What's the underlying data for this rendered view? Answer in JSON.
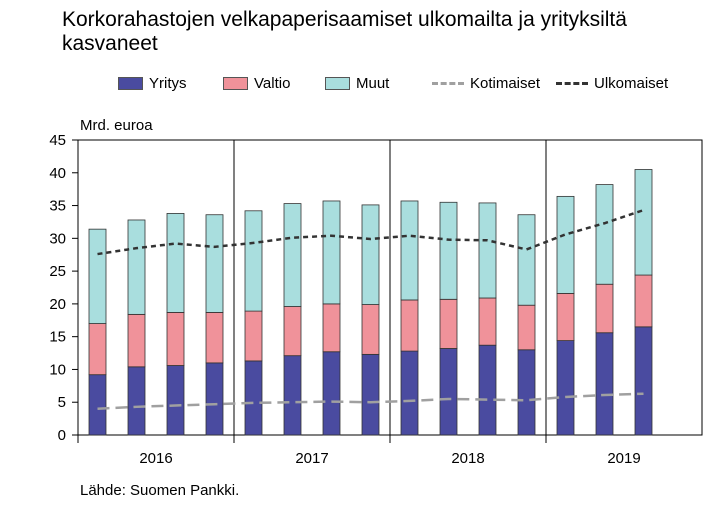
{
  "title": "Korkorahastojen velkapaperisaamiset ulkomailta ja yrityksiltä kasvaneet",
  "source": "Lähde: Suomen Pankki.",
  "colors": {
    "yritys": "#4a4ba0",
    "valtio": "#f0929a",
    "muut": "#a9dede",
    "kotimaiset": "#a0a0a0",
    "ulkomaiset": "#333333"
  },
  "legend": [
    {
      "key": "yritys",
      "label": "Yritys",
      "kind": "swatch"
    },
    {
      "key": "valtio",
      "label": "Valtio",
      "kind": "swatch"
    },
    {
      "key": "muut",
      "label": "Muut",
      "kind": "swatch"
    },
    {
      "key": "kotimaiset",
      "label": "Kotimaiset",
      "kind": "longdash"
    },
    {
      "key": "ulkomaiset",
      "label": "Ulkomaiset",
      "kind": "shortdash"
    }
  ],
  "chart_data": {
    "type": "bar",
    "stacked": true,
    "ylabel": "Mrd. euroa",
    "ylim": [
      0,
      45
    ],
    "yticks": [
      0,
      5,
      10,
      15,
      20,
      25,
      30,
      35,
      40,
      45
    ],
    "years": [
      "2016",
      "2017",
      "2018",
      "2019"
    ],
    "quarters_per_year": 4,
    "categories": [
      "2016Q1",
      "2016Q2",
      "2016Q3",
      "2016Q4",
      "2017Q1",
      "2017Q2",
      "2017Q3",
      "2017Q4",
      "2018Q1",
      "2018Q2",
      "2018Q3",
      "2018Q4",
      "2019Q1",
      "2019Q2",
      "2019Q3"
    ],
    "grid": "vertical lines at year boundaries",
    "legend_position": "top",
    "series": [
      {
        "name": "Yritys",
        "kind": "bar",
        "values": [
          9.2,
          10.4,
          10.6,
          11.0,
          11.3,
          12.1,
          12.7,
          12.3,
          12.8,
          13.2,
          13.7,
          13.0,
          14.4,
          15.6,
          16.5
        ]
      },
      {
        "name": "Valtio",
        "kind": "bar",
        "values": [
          7.8,
          8.0,
          8.1,
          7.7,
          7.6,
          7.5,
          7.3,
          7.6,
          7.8,
          7.5,
          7.2,
          6.8,
          7.2,
          7.4,
          7.9
        ]
      },
      {
        "name": "Muut",
        "kind": "bar",
        "values": [
          14.4,
          14.4,
          15.1,
          14.9,
          15.3,
          15.7,
          15.7,
          15.2,
          15.1,
          14.8,
          14.5,
          13.8,
          14.8,
          15.2,
          16.1
        ]
      },
      {
        "name": "Kotimaiset",
        "kind": "line",
        "style": "longdash",
        "values": [
          4.0,
          4.3,
          4.5,
          4.7,
          4.9,
          5.0,
          5.1,
          5.0,
          5.2,
          5.5,
          5.4,
          5.3,
          5.8,
          6.1,
          6.3
        ]
      },
      {
        "name": "Ulkomaiset",
        "kind": "line",
        "style": "shortdash",
        "values": [
          27.6,
          28.5,
          29.2,
          28.7,
          29.3,
          30.1,
          30.4,
          29.9,
          30.4,
          29.8,
          29.7,
          28.3,
          30.6,
          32.3,
          34.3
        ]
      }
    ]
  }
}
